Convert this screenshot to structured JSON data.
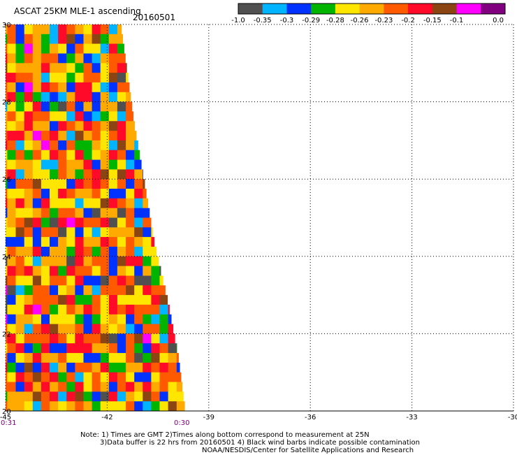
{
  "header": {
    "title": "ASCAT 25KM MLE-1 ascending",
    "date": "20160501"
  },
  "colorbar": {
    "labels": [
      "-1.0",
      "-0.35",
      "-0.3",
      "-0.29",
      "-0.28",
      "-0.26",
      "-0.23",
      "-0.2",
      "-0.15",
      "-0.1",
      "0.0"
    ],
    "colors": [
      "#505050",
      "#00b4ff",
      "#0032ff",
      "#00b400",
      "#ffe600",
      "#ffaa00",
      "#ff5a00",
      "#ff0a28",
      "#8b4513",
      "#ff00ff",
      "#800080"
    ]
  },
  "time_labels": {
    "left": "0:31",
    "right": "0:30"
  },
  "notes": {
    "line1": "Note: 1) Times are GMT 2)Times along bottom correspond to measurement at 25N",
    "line2": "3)Data buffer is 22 hrs from 20160501 4) Black wind barbs indicate possible contamination",
    "line3": "NOAA/NESDIS/Center for Satellite Applications and Research"
  },
  "chart_data": {
    "type": "heatmap",
    "title": "ASCAT 25KM MLE-1 ascending",
    "xlim": [
      -45,
      -30
    ],
    "ylim": [
      20,
      30
    ],
    "x_ticks": [
      "-45",
      "-42",
      "-39",
      "-36",
      "-33",
      "-30"
    ],
    "y_ticks": [
      "20",
      "22",
      "24",
      "26",
      "28",
      "30"
    ],
    "x_tick_values": [
      -45,
      -42,
      -39,
      -36,
      -33,
      -30
    ],
    "y_tick_values": [
      20,
      22,
      24,
      26,
      28,
      30
    ],
    "grid": true,
    "cell_size_deg": 0.25,
    "swath_east_edge_lon": [
      {
        "lat": 30.0,
        "lon": -41.6
      },
      {
        "lat": 27.4,
        "lon": -41.2
      },
      {
        "lat": 25.9,
        "lon": -40.9
      },
      {
        "lat": 24.3,
        "lon": -40.6
      },
      {
        "lat": 22.8,
        "lon": -40.2
      },
      {
        "lat": 21.4,
        "lon": -39.9
      },
      {
        "lat": 20.0,
        "lon": -39.7
      }
    ],
    "value_classes": [
      "-1.0",
      "-0.35",
      "-0.3",
      "-0.29",
      "-0.28",
      "-0.26",
      "-0.23",
      "-0.2",
      "-0.15",
      "-0.1",
      "0.0"
    ],
    "dominant_classes": [
      "-0.28",
      "-0.26",
      "-0.23",
      "-0.2"
    ]
  }
}
